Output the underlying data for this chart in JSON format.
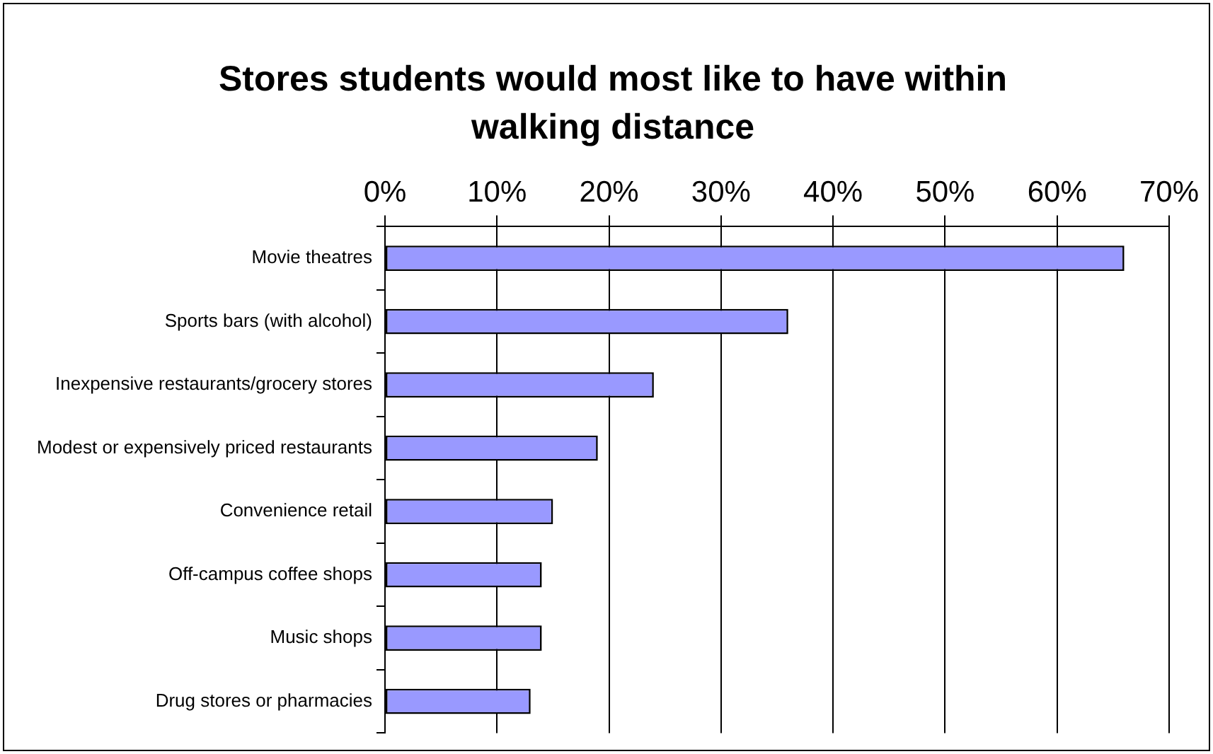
{
  "chart_data": {
    "type": "bar",
    "orientation": "horizontal",
    "title": "Stores students would most like to have within walking distance",
    "categories": [
      "Movie theatres",
      "Sports bars (with alcohol)",
      "Inexpensive restaurants/grocery stores",
      "Modest or expensively priced restaurants",
      "Convenience retail",
      "Off-campus coffee shops",
      "Music shops",
      "Drug stores or pharmacies"
    ],
    "values": [
      66,
      36,
      24,
      19,
      15,
      14,
      14,
      13
    ],
    "color": "#9999ff",
    "xlim": [
      0,
      70
    ],
    "xticks": [
      {
        "value": 0,
        "label": "0%"
      },
      {
        "value": 10,
        "label": "10%"
      },
      {
        "value": 20,
        "label": "20%"
      },
      {
        "value": 30,
        "label": "30%"
      },
      {
        "value": 40,
        "label": "40%"
      },
      {
        "value": 50,
        "label": "50%"
      },
      {
        "value": 60,
        "label": "60%"
      },
      {
        "value": 70,
        "label": "70%"
      }
    ],
    "grid": "x",
    "legend": false
  }
}
